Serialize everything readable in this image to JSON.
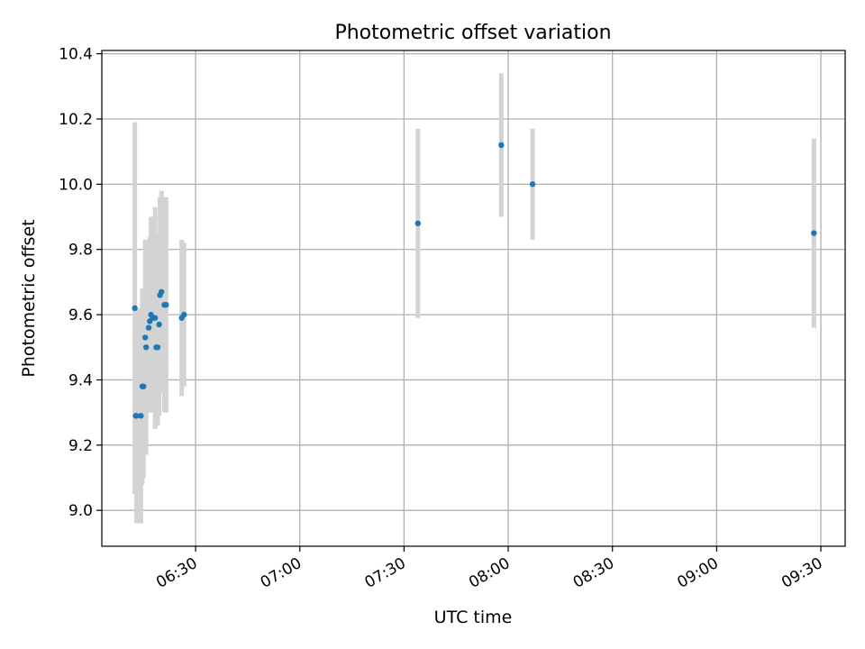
{
  "colors": {
    "point": "#1f77b4",
    "errorbar": "#d3d3d3",
    "grid": "#b0b0b0",
    "axes": "#000000",
    "background": "#ffffff"
  },
  "chart_data": {
    "type": "scatter",
    "title": "Photometric offset variation",
    "xlabel": "UTC time",
    "ylabel": "Photometric offset",
    "grid": true,
    "xlim": [
      "06:03",
      "09:37"
    ],
    "ylim": [
      8.89,
      10.41
    ],
    "x_ticks": [
      "06:30",
      "07:00",
      "07:30",
      "08:00",
      "08:30",
      "09:00",
      "09:30"
    ],
    "x_tick_rotation_deg": 30,
    "y_ticks": [
      9.0,
      9.2,
      9.4,
      9.6,
      9.8,
      10.0,
      10.2,
      10.4
    ],
    "y_tick_labels": [
      "9.0",
      "9.2",
      "9.4",
      "9.6",
      "9.8",
      "10.0",
      "10.2",
      "10.4"
    ],
    "series": [
      {
        "marker": "point",
        "error_bars": "vertical, light grey",
        "points": [
          {
            "x": "06:12:30",
            "y": 9.62,
            "yerr": 0.57
          },
          {
            "x": "06:12:45",
            "y": 9.29,
            "yerr": 0.23
          },
          {
            "x": "06:13:00",
            "y": 9.29,
            "yerr": 0.33
          },
          {
            "x": "06:14:15",
            "y": 9.29,
            "yerr": 0.33
          },
          {
            "x": "06:14:40",
            "y": 9.38,
            "yerr": 0.3
          },
          {
            "x": "06:15:00",
            "y": 9.38,
            "yerr": 0.28
          },
          {
            "x": "06:15:30",
            "y": 9.53,
            "yerr": 0.3
          },
          {
            "x": "06:15:45",
            "y": 9.5,
            "yerr": 0.33
          },
          {
            "x": "06:16:30",
            "y": 9.56,
            "yerr": 0.26
          },
          {
            "x": "06:16:50",
            "y": 9.58,
            "yerr": 0.26
          },
          {
            "x": "06:17:10",
            "y": 9.6,
            "yerr": 0.3
          },
          {
            "x": "06:17:40",
            "y": 9.59,
            "yerr": 0.28
          },
          {
            "x": "06:18:20",
            "y": 9.59,
            "yerr": 0.34
          },
          {
            "x": "06:18:40",
            "y": 9.5,
            "yerr": 0.24
          },
          {
            "x": "06:19:05",
            "y": 9.5,
            "yerr": 0.24
          },
          {
            "x": "06:19:30",
            "y": 9.57,
            "yerr": 0.28
          },
          {
            "x": "06:19:45",
            "y": 9.66,
            "yerr": 0.3
          },
          {
            "x": "06:20:10",
            "y": 9.67,
            "yerr": 0.31
          },
          {
            "x": "06:21:00",
            "y": 9.63,
            "yerr": 0.33
          },
          {
            "x": "06:21:30",
            "y": 9.63,
            "yerr": 0.33
          },
          {
            "x": "06:26:00",
            "y": 9.59,
            "yerr": 0.24
          },
          {
            "x": "06:26:40",
            "y": 9.6,
            "yerr": 0.22
          },
          {
            "x": "07:34:00",
            "y": 9.88,
            "yerr": 0.29
          },
          {
            "x": "07:58:00",
            "y": 10.12,
            "yerr": 0.22
          },
          {
            "x": "08:07:00",
            "y": 10.0,
            "yerr": 0.17
          },
          {
            "x": "09:28:00",
            "y": 9.85,
            "yerr": 0.29
          }
        ]
      }
    ]
  }
}
